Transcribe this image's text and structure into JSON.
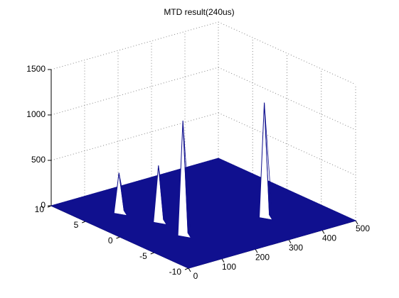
{
  "chart_data": {
    "type": "mesh3d",
    "title": "MTD  result(240us)",
    "x": [
      100,
      136,
      127,
      350
    ],
    "y": [
      5,
      1,
      -3,
      -4
    ],
    "values": [
      430,
      610,
      1250,
      1250
    ],
    "color": "#10108f",
    "peak_color": "#ffffff",
    "xlim": [
      0,
      500
    ],
    "xticks": [
      0,
      100,
      200,
      300,
      400,
      500
    ],
    "ylim": [
      -10,
      10
    ],
    "yticks": [
      -10,
      -5,
      0,
      5,
      10
    ],
    "zlim": [
      0,
      1500
    ],
    "zticks": [
      0,
      500,
      1000,
      1500
    ],
    "grid": true
  }
}
